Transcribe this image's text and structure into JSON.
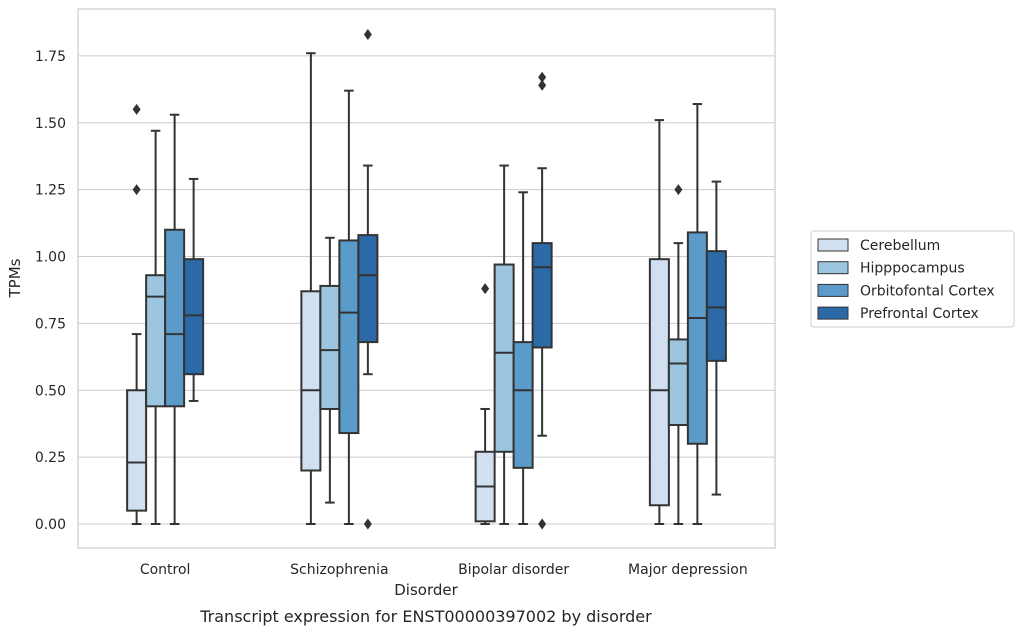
{
  "chart_data": {
    "type": "box",
    "caption": "Transcript expression for ENST00000397002 by disorder",
    "xlabel": "Disorder",
    "ylabel": "TPMs",
    "ylim": [
      -0.09,
      1.92
    ],
    "yticks": [
      "0.00",
      "0.25",
      "0.50",
      "0.75",
      "1.00",
      "1.25",
      "1.50",
      "1.75"
    ],
    "grid": true,
    "legend_position": "right",
    "categories": [
      "Control",
      "Schizophrenia",
      "Bipolar disorder",
      "Major depression"
    ],
    "series": [
      {
        "name": "Cerebellum",
        "color": "#d1e0f1",
        "boxes": [
          {
            "whisker_low": 0.0,
            "q1": 0.05,
            "median": 0.23,
            "q3": 0.5,
            "whisker_high": 0.71,
            "outliers": [
              1.25,
              1.55
            ]
          },
          {
            "whisker_low": 0.0,
            "q1": 0.2,
            "median": 0.5,
            "q3": 0.87,
            "whisker_high": 1.76,
            "outliers": []
          },
          {
            "whisker_low": 0.0,
            "q1": 0.01,
            "median": 0.14,
            "q3": 0.27,
            "whisker_high": 0.43,
            "outliers": [
              0.88
            ]
          },
          {
            "whisker_low": 0.0,
            "q1": 0.07,
            "median": 0.5,
            "q3": 0.99,
            "whisker_high": 1.51,
            "outliers": []
          }
        ]
      },
      {
        "name": "Hipppocampus",
        "color": "#9cc6e0",
        "boxes": [
          {
            "whisker_low": 0.0,
            "q1": 0.44,
            "median": 0.85,
            "q3": 0.93,
            "whisker_high": 1.47,
            "outliers": []
          },
          {
            "whisker_low": 0.08,
            "q1": 0.43,
            "median": 0.65,
            "q3": 0.89,
            "whisker_high": 1.07,
            "outliers": []
          },
          {
            "whisker_low": 0.0,
            "q1": 0.27,
            "median": 0.64,
            "q3": 0.97,
            "whisker_high": 1.34,
            "outliers": []
          },
          {
            "whisker_low": 0.0,
            "q1": 0.37,
            "median": 0.6,
            "q3": 0.69,
            "whisker_high": 1.05,
            "outliers": [
              1.25
            ]
          }
        ]
      },
      {
        "name": "Orbitofontal Cortex",
        "color": "#5b9bc9",
        "boxes": [
          {
            "whisker_low": 0.0,
            "q1": 0.44,
            "median": 0.71,
            "q3": 1.1,
            "whisker_high": 1.53,
            "outliers": []
          },
          {
            "whisker_low": 0.0,
            "q1": 0.34,
            "median": 0.79,
            "q3": 1.06,
            "whisker_high": 1.62,
            "outliers": []
          },
          {
            "whisker_low": 0.0,
            "q1": 0.21,
            "median": 0.5,
            "q3": 0.68,
            "whisker_high": 1.24,
            "outliers": []
          },
          {
            "whisker_low": 0.0,
            "q1": 0.3,
            "median": 0.77,
            "q3": 1.09,
            "whisker_high": 1.57,
            "outliers": []
          }
        ]
      },
      {
        "name": "Prefrontal Cortex",
        "color": "#2c6aa7",
        "boxes": [
          {
            "whisker_low": 0.46,
            "q1": 0.56,
            "median": 0.78,
            "q3": 0.99,
            "whisker_high": 1.29,
            "outliers": []
          },
          {
            "whisker_low": 0.56,
            "q1": 0.68,
            "median": 0.93,
            "q3": 1.08,
            "whisker_high": 1.34,
            "outliers": [
              0.0,
              1.83
            ]
          },
          {
            "whisker_low": 0.33,
            "q1": 0.66,
            "median": 0.96,
            "q3": 1.05,
            "whisker_high": 1.33,
            "outliers": [
              0.0,
              1.64,
              1.67
            ]
          },
          {
            "whisker_low": 0.11,
            "q1": 0.61,
            "median": 0.81,
            "q3": 1.02,
            "whisker_high": 1.28,
            "outliers": []
          }
        ]
      }
    ]
  }
}
